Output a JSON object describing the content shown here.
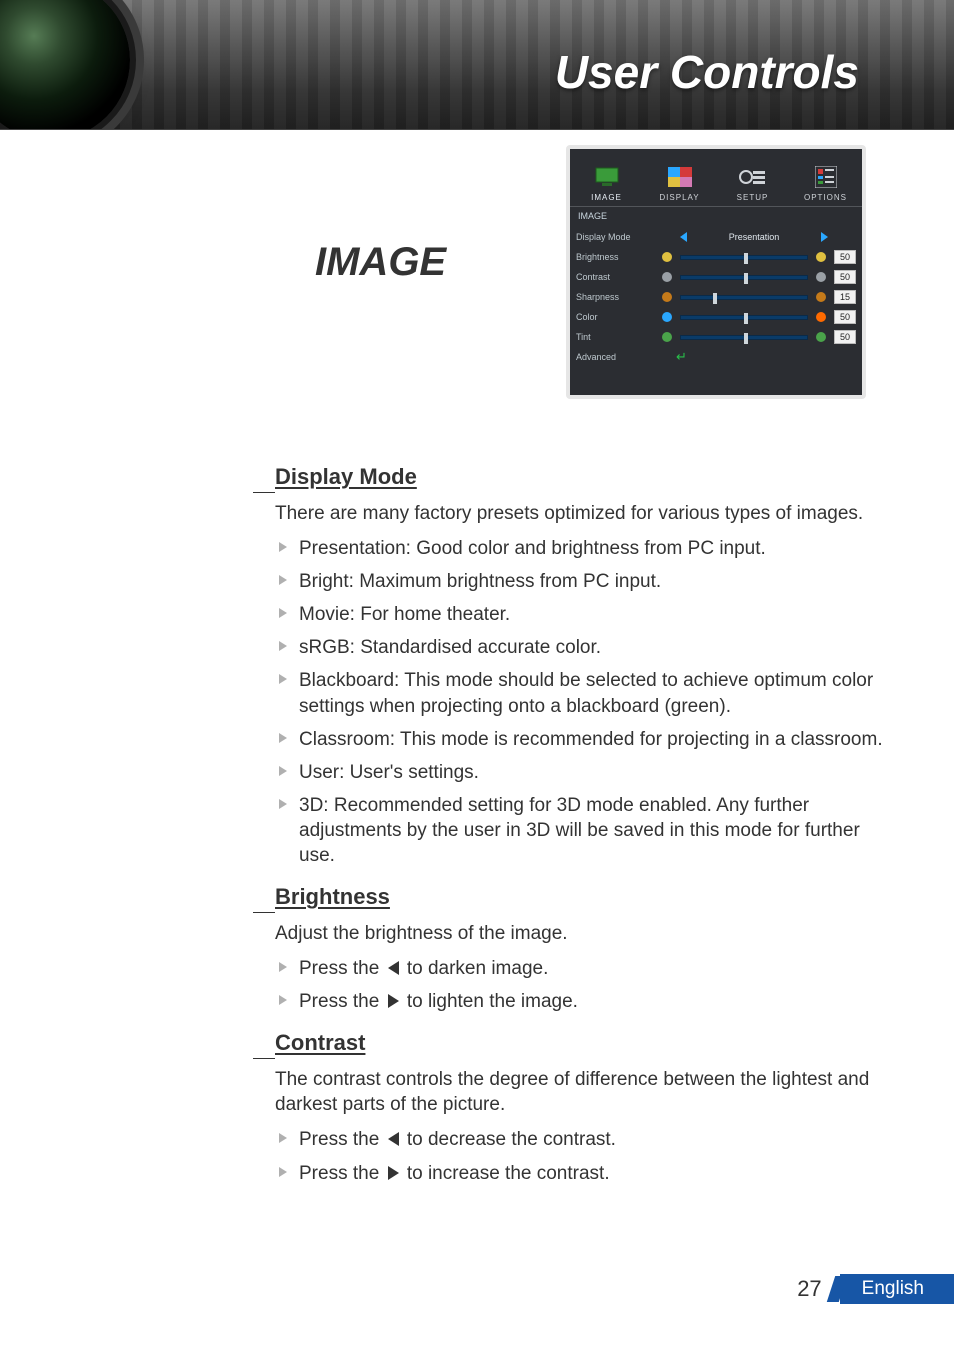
{
  "header_title": "User Controls",
  "section_title": "IMAGE",
  "page_number": "27",
  "footer_language": "English",
  "osd": {
    "tabs": [
      {
        "label": "IMAGE",
        "active": true
      },
      {
        "label": "DISPLAY",
        "active": false
      },
      {
        "label": "SETUP",
        "active": false
      },
      {
        "label": "OPTIONS",
        "active": false
      }
    ],
    "panel_label": "IMAGE",
    "display_mode_label": "Display Mode",
    "display_mode_value": "Presentation",
    "advanced_label": "Advanced",
    "sliders": [
      {
        "label": "Brightness",
        "value": "50",
        "thumb_pct": 50,
        "icon_left_color": "#e0c040",
        "icon_right_color": "#e0c040"
      },
      {
        "label": "Contrast",
        "value": "50",
        "thumb_pct": 50,
        "icon_left_color": "#9aa0a6",
        "icon_right_color": "#9aa0a6"
      },
      {
        "label": "Sharpness",
        "value": "15",
        "thumb_pct": 25,
        "icon_left_color": "#c57a1a",
        "icon_right_color": "#c57a1a"
      },
      {
        "label": "Color",
        "value": "50",
        "thumb_pct": 50,
        "icon_left_color": "#2aa7ff",
        "icon_right_color": "#ff6a00"
      },
      {
        "label": "Tint",
        "value": "50",
        "thumb_pct": 50,
        "icon_left_color": "#4aa34a",
        "icon_right_color": "#4aa34a"
      }
    ],
    "style": {
      "panel_bg": "#2b2d32",
      "panel_border": "#e6e6e6",
      "slider_track": "#0a3b68",
      "arrow_color": "#2aa7ff",
      "value_bg": "#f2f2f2"
    }
  },
  "sections": {
    "display_mode": {
      "heading": "Display Mode",
      "intro": "There are many factory presets optimized for various types of images.",
      "items": [
        "Presentation: Good color and brightness from PC input.",
        "Bright: Maximum brightness from PC input.",
        "Movie: For home theater.",
        "sRGB: Standardised accurate color.",
        "Blackboard: This mode should be selected to achieve optimum color settings when projecting onto a blackboard (green).",
        "Classroom: This mode is recommended for projecting in a classroom.",
        "User: User's settings.",
        "3D: Recommended setting for 3D mode enabled. Any further adjustments by the user in 3D will be saved in this mode for further use."
      ]
    },
    "brightness": {
      "heading": "Brightness",
      "intro": "Adjust the brightness of the image.",
      "press_text": "Press the",
      "darken": "to darken image.",
      "lighten": "to lighten the image."
    },
    "contrast": {
      "heading": "Contrast",
      "intro": "The contrast controls the degree of difference between the lightest and darkest parts of the picture.",
      "press_text": "Press the",
      "decrease": "to decrease the contrast.",
      "increase": "to increase the contrast."
    }
  }
}
